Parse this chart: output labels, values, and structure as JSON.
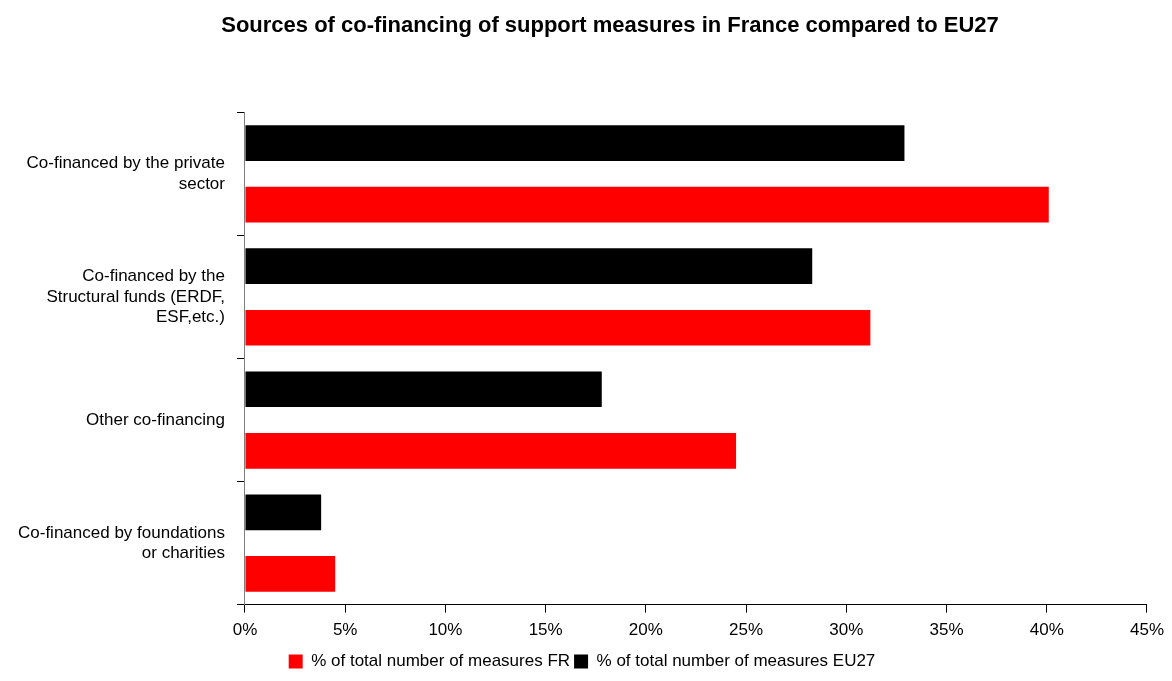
{
  "chart_data": {
    "type": "bar",
    "orientation": "horizontal",
    "title": "Sources of co-financing of support measures in France compared to EU27",
    "categories": [
      "Co-financed by the private sector",
      "Co-financed by the Structural funds (ERDF, ESF,etc.)",
      "Other co-financing",
      "Co-financed by foundations or charities"
    ],
    "series": [
      {
        "name": "% of total number of measures FR",
        "color": "#ff0000",
        "values": [
          40.1,
          31.2,
          24.5,
          4.5
        ]
      },
      {
        "name": "% of total number of measures EU27",
        "color": "#000000",
        "values": [
          32.9,
          28.3,
          17.8,
          3.8
        ]
      }
    ],
    "xlim": [
      0,
      45
    ],
    "xticks": [
      {
        "value": 0,
        "label": "0%"
      },
      {
        "value": 5,
        "label": "5%"
      },
      {
        "value": 10,
        "label": "10%"
      },
      {
        "value": 15,
        "label": "15%"
      },
      {
        "value": 20,
        "label": "20%"
      },
      {
        "value": 25,
        "label": "25%"
      },
      {
        "value": 30,
        "label": "30%"
      },
      {
        "value": 35,
        "label": "35%"
      },
      {
        "value": 40,
        "label": "40%"
      },
      {
        "value": 45,
        "label": "45%"
      }
    ],
    "grid": false,
    "legend": "bottom"
  }
}
